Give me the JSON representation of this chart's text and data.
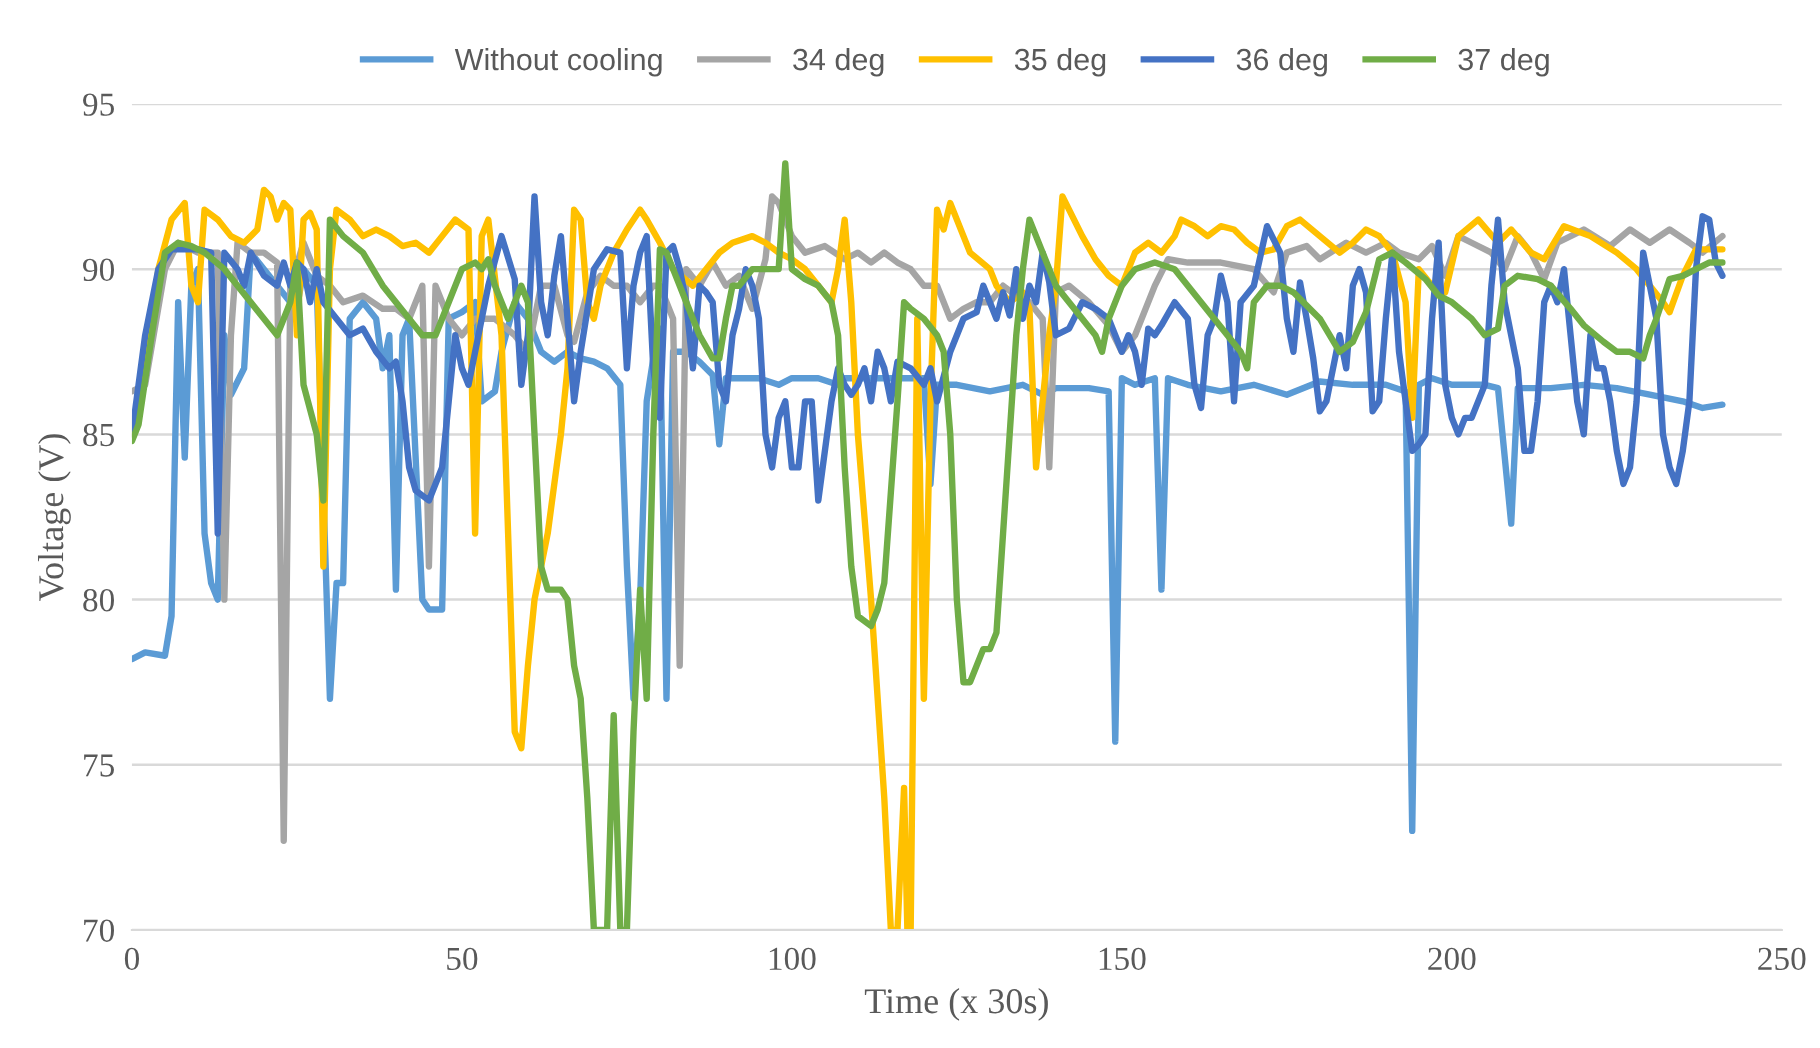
{
  "chart_data": {
    "type": "line",
    "xlabel": "Time (x 30s)",
    "ylabel": "Voltage (V)",
    "xlim": [
      0,
      250
    ],
    "xticks": [
      0,
      50,
      100,
      150,
      200,
      250
    ],
    "ylim": [
      70,
      95
    ],
    "yticks": [
      70,
      75,
      80,
      85,
      90,
      95
    ],
    "grid": "y",
    "legend": "top",
    "line_style": "solid",
    "series": [
      {
        "name": "Without cooling",
        "color": "#5b9bd5",
        "x": [
          0,
          2,
          5,
          6,
          7,
          8,
          9,
          10,
          11,
          12,
          13,
          14,
          15,
          17,
          18,
          20,
          22,
          24,
          25,
          26,
          28,
          30,
          31,
          32,
          33,
          35,
          37,
          38,
          39,
          40,
          41,
          42,
          44,
          45,
          47,
          48,
          50,
          52,
          53,
          55,
          56,
          58,
          60,
          62,
          64,
          66,
          68,
          70,
          72,
          74,
          75,
          76,
          77,
          78,
          79,
          80,
          81,
          82,
          84,
          86,
          88,
          89,
          90,
          92,
          95,
          98,
          100,
          104,
          107,
          108,
          112,
          120,
          121,
          122,
          125,
          130,
          135,
          138,
          140,
          145,
          148,
          149,
          150,
          152,
          155,
          156,
          157,
          160,
          165,
          170,
          175,
          180,
          185,
          190,
          193,
          194,
          195,
          197,
          200,
          205,
          207,
          209,
          210,
          215,
          220,
          225,
          230,
          235,
          238,
          241
        ],
        "values": [
          78.2,
          78.4,
          78.3,
          79.5,
          89,
          84.3,
          89.5,
          90,
          82,
          80.5,
          80,
          88,
          86.2,
          87,
          90.5,
          90,
          89.5,
          89,
          88.8,
          90,
          89.5,
          77,
          80.5,
          80.5,
          88.5,
          89,
          88.5,
          87,
          88,
          80.3,
          88,
          88.5,
          80,
          79.7,
          79.7,
          88.5,
          88.7,
          89,
          86,
          86.3,
          87.5,
          89,
          88.5,
          87.5,
          87.2,
          87.5,
          87.3,
          87.2,
          87,
          86.5,
          81,
          77,
          80,
          86,
          87.3,
          88.2,
          77,
          87.5,
          87.5,
          87.2,
          86.8,
          84.7,
          86.7,
          86.7,
          86.7,
          86.5,
          86.7,
          86.7,
          86.5,
          86.7,
          86.7,
          86.7,
          83.5,
          86.5,
          86.5,
          86.3,
          86.5,
          86.2,
          86.4,
          86.4,
          86.3,
          75.7,
          86.7,
          86.5,
          86.7,
          80.3,
          86.7,
          86.5,
          86.3,
          86.5,
          86.2,
          86.6,
          86.5,
          86.5,
          86.3,
          73,
          86.5,
          86.7,
          86.5,
          86.5,
          86.4,
          82.3,
          86.4,
          86.4,
          86.5,
          86.4,
          86.2,
          86,
          85.8,
          85.9
        ]
      },
      {
        "name": "34 deg",
        "color": "#a5a5a5",
        "x": [
          0,
          2,
          5,
          7,
          10,
          13,
          14,
          15,
          16,
          18,
          20,
          22,
          23,
          24,
          26,
          28,
          30,
          32,
          35,
          38,
          40,
          42,
          44,
          45,
          46,
          48,
          50,
          52,
          55,
          58,
          60,
          62,
          64,
          66,
          67,
          69,
          71,
          73,
          75,
          77,
          79,
          80,
          82,
          83,
          84,
          86,
          88,
          90,
          92,
          94,
          96,
          97,
          98,
          100,
          102,
          105,
          108,
          110,
          112,
          114,
          116,
          118,
          120,
          122,
          124,
          126,
          128,
          130,
          132,
          134,
          136,
          138,
          139,
          140,
          142,
          145,
          148,
          150,
          152,
          155,
          157,
          160,
          165,
          170,
          173,
          175,
          178,
          180,
          184,
          187,
          190,
          192,
          195,
          197,
          199,
          201,
          203,
          206,
          208,
          210,
          212,
          214,
          216,
          220,
          224,
          227,
          230,
          233,
          236,
          238,
          241
        ],
        "values": [
          86.3,
          86.5,
          90,
          90.8,
          90.5,
          90.5,
          80,
          88,
          90.8,
          90.5,
          90.5,
          90.2,
          72.7,
          89.5,
          90.8,
          89.8,
          89.5,
          89,
          89.2,
          88.8,
          88.8,
          88.5,
          89.5,
          81,
          89.5,
          88.5,
          88,
          88.5,
          88.5,
          88,
          87.5,
          89.5,
          89.5,
          88,
          87.8,
          89.3,
          89.8,
          89.5,
          89.5,
          89,
          89.5,
          89.5,
          88.5,
          78,
          90,
          89.5,
          90.2,
          89.5,
          89.8,
          88.8,
          90.3,
          92.2,
          92,
          91,
          90.5,
          90.7,
          90.3,
          90.5,
          90.2,
          90.5,
          90.2,
          90,
          89.5,
          89.5,
          88.5,
          88.8,
          89,
          89,
          89.5,
          89.2,
          89,
          88.5,
          84,
          89.3,
          89.5,
          89,
          88.3,
          87.5,
          88,
          89.5,
          90.3,
          90.2,
          90.2,
          90,
          89.3,
          90.5,
          90.7,
          90.3,
          90.8,
          90.5,
          90.8,
          90.5,
          90.3,
          90.7,
          89.8,
          91,
          90.8,
          90.5,
          90,
          91,
          90.5,
          89.7,
          90.8,
          91.2,
          90.7,
          91.2,
          90.8,
          91.2,
          90.8,
          90.5,
          91
        ]
      },
      {
        "name": "35 deg",
        "color": "#ffc000",
        "x": [
          0,
          2,
          4,
          6,
          8,
          9,
          10,
          11,
          13,
          15,
          17,
          19,
          20,
          21,
          22,
          23,
          24,
          25,
          26,
          27,
          28,
          29,
          30,
          31,
          33,
          35,
          37,
          39,
          41,
          43,
          45,
          47,
          49,
          51,
          52,
          53,
          54,
          56,
          57,
          58,
          59,
          60,
          61,
          63,
          65,
          66,
          67,
          68,
          69,
          70,
          71,
          73,
          75,
          77,
          78,
          80,
          82,
          85,
          87,
          89,
          91,
          94,
          96,
          98,
          100,
          102,
          104,
          106,
          107,
          108,
          109,
          110,
          112,
          114,
          115,
          116,
          117,
          117.5,
          118,
          119,
          120,
          121,
          122,
          123,
          124,
          125,
          127,
          130,
          131,
          133,
          135,
          136,
          137,
          138,
          139,
          140,
          141,
          142,
          144,
          146,
          148,
          150,
          152,
          154,
          156,
          158,
          159,
          161,
          163,
          165,
          167,
          169,
          171,
          173,
          175,
          177,
          180,
          183,
          185,
          187,
          189,
          191,
          193,
          194,
          195,
          197,
          199,
          201,
          204,
          207,
          209,
          212,
          214,
          217,
          221,
          225,
          228,
          230,
          232,
          233,
          235,
          237,
          241
        ],
        "values": [
          85,
          87,
          90,
          91.5,
          92,
          89.5,
          89,
          91.8,
          91.5,
          91,
          90.8,
          91.2,
          92.4,
          92.2,
          91.5,
          92,
          91.8,
          88,
          91.5,
          91.7,
          91.2,
          81,
          90,
          91.8,
          91.5,
          91,
          91.2,
          91,
          90.7,
          90.8,
          90.5,
          91,
          91.5,
          91.2,
          82,
          91,
          91.5,
          88,
          82,
          76,
          75.5,
          78,
          80,
          82,
          85,
          87,
          91.8,
          91.5,
          89,
          88.5,
          89.5,
          90.5,
          91.2,
          91.8,
          91.5,
          90.8,
          90,
          89.5,
          90,
          90.5,
          90.8,
          91,
          90.8,
          90.5,
          90.3,
          90,
          89.5,
          89,
          90,
          91.5,
          89,
          85,
          80,
          74,
          70,
          70,
          74.3,
          70,
          70,
          88.5,
          77,
          86,
          91.8,
          91.2,
          92,
          91.5,
          90.5,
          90,
          89.5,
          89,
          89.3,
          88.8,
          84,
          86,
          88,
          89.5,
          92.2,
          91.8,
          91,
          90.3,
          89.8,
          89.5,
          90.5,
          90.8,
          90.5,
          91,
          91.5,
          91.3,
          91,
          91.3,
          91.2,
          90.8,
          90.5,
          90.6,
          91.3,
          91.5,
          91,
          90.5,
          90.8,
          91.2,
          91,
          90.5,
          89,
          85.5,
          90,
          89.5,
          89.3,
          91,
          91.5,
          90.8,
          91.2,
          90.5,
          90.3,
          91.3,
          91,
          90.5,
          90,
          89.5,
          89,
          88.7,
          89.8,
          90.6,
          90.6
        ]
      },
      {
        "name": "36 deg",
        "color": "#4472c4",
        "x": [
          0,
          2,
          4,
          6,
          8,
          10,
          12,
          13,
          14,
          16,
          17,
          18,
          20,
          22,
          23,
          24,
          25,
          26,
          27,
          28,
          29,
          31,
          33,
          35,
          37,
          39,
          40,
          41,
          42,
          43,
          45,
          47,
          48,
          49,
          50,
          51,
          52,
          54,
          56,
          58,
          59,
          60,
          61,
          62,
          63,
          64,
          65,
          66,
          67,
          68,
          70,
          72,
          74,
          75,
          76,
          77,
          78,
          79,
          80,
          81,
          82,
          83,
          84,
          85,
          86,
          87,
          88,
          89,
          90,
          91,
          92,
          93,
          94,
          95,
          96,
          97,
          98,
          99,
          100,
          101,
          102,
          103,
          104,
          106,
          107,
          108,
          109,
          110,
          111,
          112,
          113,
          114,
          115,
          116,
          118,
          120,
          121,
          122,
          124,
          126,
          128,
          129,
          130,
          131,
          132,
          133,
          134,
          135,
          136,
          137,
          138,
          139,
          140,
          142,
          144,
          146,
          148,
          150,
          151,
          152,
          153,
          154,
          155,
          156,
          158,
          160,
          161,
          162,
          163,
          164,
          165,
          166,
          167,
          168,
          170,
          172,
          174,
          175,
          176,
          177,
          178,
          179,
          180,
          181,
          183,
          184,
          185,
          186,
          187,
          188,
          189,
          190,
          191,
          192,
          193,
          194,
          195,
          196,
          197,
          198,
          199,
          200,
          201,
          202,
          203,
          204,
          205,
          206,
          207,
          208,
          209,
          210,
          211,
          212,
          213,
          214,
          215,
          216,
          217,
          218,
          219,
          220,
          221,
          222,
          223,
          224,
          225,
          226,
          227,
          228,
          229,
          230,
          231,
          232,
          233,
          234,
          235,
          236,
          237,
          238,
          239,
          240,
          241
        ],
        "values": [
          85,
          88,
          90,
          90.6,
          90.6,
          90.6,
          90.5,
          82,
          90.5,
          90,
          89.5,
          90.5,
          89.8,
          89.5,
          90.2,
          89.5,
          90.2,
          90,
          89,
          90,
          89,
          88.5,
          88,
          88.2,
          87.5,
          87,
          87.2,
          86,
          84,
          83.3,
          83,
          84,
          86,
          88,
          87,
          86.5,
          87.5,
          89.5,
          91,
          89.7,
          86.5,
          88,
          92.2,
          89,
          88,
          89.8,
          91,
          88.5,
          86,
          87.5,
          90,
          90.6,
          90.5,
          87,
          89.5,
          90.5,
          91,
          87,
          85.5,
          90.5,
          90.7,
          90,
          89,
          87,
          89.5,
          89.3,
          89,
          86.5,
          86,
          88,
          88.8,
          90,
          89.5,
          88.5,
          85,
          84,
          85.5,
          86,
          84,
          84,
          86,
          86,
          83,
          86,
          87,
          86.5,
          86.2,
          86.5,
          87,
          86,
          87.5,
          87,
          86,
          87.2,
          87,
          86.5,
          87,
          86,
          87.5,
          88.5,
          88.7,
          89.5,
          89,
          88.5,
          89.3,
          88.6,
          90,
          88.5,
          89.5,
          89,
          90.5,
          89.6,
          88,
          88.2,
          89,
          88.8,
          88.5,
          87.5,
          88,
          87.5,
          86.5,
          88.2,
          88,
          88.3,
          89,
          88.5,
          86.5,
          85.8,
          88,
          88.5,
          89.8,
          89,
          86,
          89,
          89.5,
          91.3,
          90.5,
          88.5,
          87.5,
          89.6,
          88.5,
          87.3,
          85.7,
          86,
          88,
          87,
          89.5,
          90,
          89.3,
          85.7,
          86,
          88.5,
          90.5,
          87.5,
          86,
          84.5,
          84.7,
          85,
          88.5,
          90.8,
          86.5,
          85.5,
          85,
          85.5,
          85.5,
          86,
          86.5,
          89.5,
          91.5,
          89,
          88,
          87,
          84.5,
          84.5,
          86,
          89,
          89.5,
          89,
          90,
          88,
          86,
          85,
          88,
          87,
          87,
          86,
          84.5,
          83.5,
          84,
          86,
          90.5,
          89.5,
          88.5,
          85,
          84,
          83.5,
          84.5,
          86,
          90,
          91.6,
          91.5,
          90.2,
          89.8
        ]
      },
      {
        "name": "37 deg",
        "color": "#70ad47",
        "x": [
          0,
          1,
          3,
          5,
          7,
          9,
          11,
          14,
          16,
          18,
          20,
          22,
          24,
          25,
          26,
          28,
          29,
          30,
          32,
          35,
          38,
          40,
          42,
          44,
          46,
          48,
          50,
          52,
          53,
          54,
          55,
          56,
          57,
          58,
          59,
          60,
          61,
          62,
          63,
          65,
          66,
          67,
          68,
          69,
          70,
          71,
          72,
          73,
          74,
          75,
          76,
          77,
          78,
          79,
          80,
          81,
          82,
          84,
          86,
          88,
          89,
          90,
          91,
          92,
          94,
          96,
          98,
          99,
          100,
          102,
          104,
          106,
          107,
          108,
          109,
          110,
          112,
          113,
          114,
          116,
          117,
          118,
          120,
          122,
          123,
          124,
          125,
          126,
          127,
          128,
          129,
          130,
          131,
          132,
          133,
          134,
          135,
          136,
          138,
          140,
          142,
          144,
          146,
          147,
          148,
          150,
          152,
          155,
          158,
          160,
          162,
          164,
          166,
          168,
          169,
          170,
          172,
          174,
          176,
          180,
          183,
          185,
          187,
          189,
          191,
          193,
          196,
          198,
          200,
          203,
          205,
          207,
          208,
          210,
          213,
          215,
          218,
          220,
          223,
          225,
          227,
          229,
          230,
          231,
          233,
          235,
          237,
          239,
          241
        ],
        "values": [
          84.8,
          85.3,
          88,
          90.5,
          90.8,
          90.7,
          90.5,
          90,
          89.5,
          89,
          88.5,
          88,
          89,
          90.2,
          86.5,
          85,
          83,
          91.5,
          91,
          90.5,
          89.5,
          89,
          88.5,
          88,
          88,
          89,
          90,
          90.2,
          90,
          90.3,
          89.5,
          89,
          88.5,
          89,
          89.5,
          89,
          85,
          81,
          80.3,
          80.3,
          80,
          78,
          77,
          74,
          70,
          70,
          70,
          76.5,
          70,
          70,
          76,
          80.3,
          77,
          85,
          90.6,
          90.5,
          90,
          89,
          88,
          87.3,
          87.3,
          88.5,
          89.5,
          89.5,
          90,
          90,
          90,
          93.2,
          90,
          89.7,
          89.5,
          89,
          88,
          84,
          81,
          79.5,
          79.2,
          79.7,
          80.5,
          86,
          89,
          88.8,
          88.5,
          88,
          87.5,
          85,
          80,
          77.5,
          77.5,
          78,
          78.5,
          78.5,
          79,
          82,
          85,
          88,
          90,
          91.5,
          90.5,
          89.5,
          89,
          88.5,
          88,
          87.5,
          88.5,
          89.5,
          90,
          90.2,
          90,
          89.5,
          89,
          88.5,
          88,
          87.5,
          87,
          89,
          89.5,
          89.5,
          89.3,
          88.5,
          87.5,
          87.8,
          88.7,
          90.3,
          90.5,
          90.2,
          89.7,
          89.2,
          89,
          88.5,
          88,
          88.2,
          89.5,
          89.8,
          89.7,
          89.5,
          88.8,
          88.3,
          87.8,
          87.5,
          87.5,
          87.3,
          88,
          88.5,
          89.7,
          89.8,
          90,
          90.2,
          90.2
        ]
      }
    ]
  }
}
